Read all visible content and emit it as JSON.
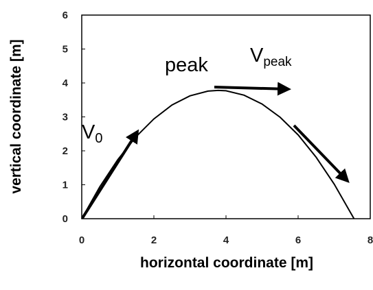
{
  "chart_data": {
    "type": "line",
    "x": [
      0,
      0.5,
      1,
      1.5,
      2,
      2.5,
      3,
      3.5,
      3.78,
      4,
      4.5,
      5,
      5.5,
      6,
      6.5,
      7,
      7.55
    ],
    "series": [
      {
        "color": "#000000",
        "values": [
          0,
          0.94,
          1.74,
          2.41,
          2.94,
          3.35,
          3.62,
          3.76,
          3.78,
          3.77,
          3.64,
          3.38,
          2.99,
          2.47,
          1.81,
          1.02,
          0
        ]
      }
    ],
    "xlim": [
      0,
      8
    ],
    "xticks": [
      0,
      2,
      4,
      6,
      8
    ],
    "ylim": [
      0,
      6
    ],
    "yticks": [
      0,
      1,
      2,
      3,
      4,
      5,
      6
    ],
    "x_label": "horizontal coordinate [m]",
    "y_label": "vertical coordinate [m]",
    "annotations": [
      "peak",
      {
        "text": "V",
        "sub": "0"
      },
      {
        "text": "V",
        "sub": "peak"
      }
    ]
  }
}
